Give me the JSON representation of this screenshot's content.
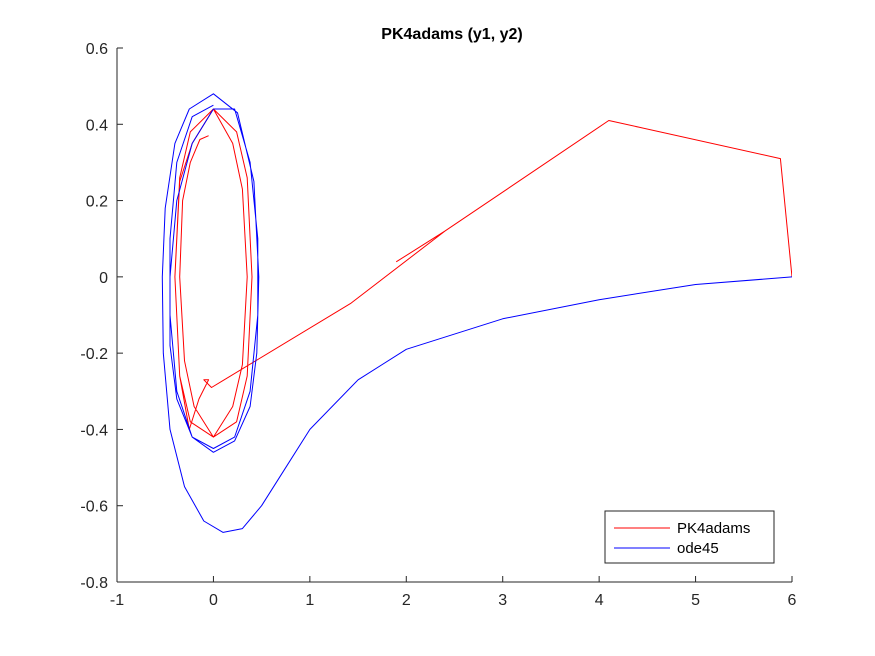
{
  "chart_data": {
    "type": "line",
    "title": "PK4adams (y1, y2)",
    "xlabel": "",
    "ylabel": "",
    "xlim": [
      -1,
      6
    ],
    "ylim": [
      -0.8,
      0.6
    ],
    "xticks": [
      -1,
      0,
      1,
      2,
      3,
      4,
      5,
      6
    ],
    "xtick_labels": [
      "-1",
      "0",
      "1",
      "2",
      "3",
      "4",
      "5",
      "6"
    ],
    "yticks": [
      -0.8,
      -0.6,
      -0.4,
      -0.2,
      0,
      0.2,
      0.4,
      0.6
    ],
    "ytick_labels": [
      "-0.8",
      "-0.6",
      "-0.4",
      "-0.2",
      "0",
      "0.2",
      "0.4",
      "0.6"
    ],
    "grid": false,
    "legend_position": "bottom-right",
    "series": [
      {
        "name": "PK4adams",
        "color": "#ff0000",
        "x": [
          6.0,
          5.88,
          4.1,
          2.4,
          1.9,
          2.4,
          1.42,
          -0.02,
          -0.1,
          -0.05,
          -0.15,
          -0.25,
          -0.35,
          -0.4,
          -0.35,
          -0.24,
          0.0,
          0.24,
          0.35,
          0.4,
          0.35,
          0.24,
          0.0,
          -0.24,
          -0.35,
          -0.4,
          -0.35,
          -0.22,
          0.0,
          0.2,
          0.3,
          0.35,
          0.3,
          0.2,
          0.0,
          -0.2,
          -0.3,
          -0.35,
          -0.32,
          -0.24,
          -0.14,
          -0.05
        ],
        "y": [
          0.0,
          0.31,
          0.41,
          0.12,
          0.04,
          0.12,
          -0.07,
          -0.29,
          -0.27,
          -0.27,
          -0.32,
          -0.4,
          -0.26,
          0.0,
          0.26,
          0.38,
          0.44,
          0.38,
          0.26,
          0.0,
          -0.26,
          -0.38,
          -0.42,
          -0.38,
          -0.26,
          0.0,
          0.25,
          0.35,
          0.44,
          0.35,
          0.23,
          0.0,
          -0.23,
          -0.34,
          -0.42,
          -0.34,
          -0.22,
          0.0,
          0.2,
          0.3,
          0.36,
          0.37
        ]
      },
      {
        "name": "ode45",
        "color": "#0000ff",
        "x": [
          6.0,
          5.0,
          4.0,
          3.0,
          2.0,
          1.5,
          1.0,
          0.7,
          0.5,
          0.3,
          0.1,
          -0.1,
          -0.3,
          -0.45,
          -0.52,
          -0.53,
          -0.5,
          -0.4,
          -0.25,
          0.0,
          0.25,
          0.42,
          0.47,
          0.45,
          0.38,
          0.22,
          0.0,
          -0.22,
          -0.38,
          -0.45,
          -0.45,
          -0.38,
          -0.22,
          0.0,
          0.22,
          0.38,
          0.46,
          0.46,
          0.38,
          0.22,
          0.0,
          -0.22,
          -0.38,
          -0.45,
          -0.45,
          -0.38,
          -0.22,
          0.0
        ],
        "y": [
          0.0,
          -0.02,
          -0.06,
          -0.11,
          -0.19,
          -0.27,
          -0.4,
          -0.52,
          -0.6,
          -0.66,
          -0.67,
          -0.64,
          -0.55,
          -0.4,
          -0.2,
          0.0,
          0.18,
          0.35,
          0.44,
          0.48,
          0.43,
          0.25,
          0.0,
          -0.2,
          -0.34,
          -0.43,
          -0.46,
          -0.42,
          -0.32,
          -0.18,
          0.0,
          0.2,
          0.35,
          0.44,
          0.44,
          0.3,
          0.1,
          -0.1,
          -0.3,
          -0.42,
          -0.45,
          -0.42,
          -0.3,
          -0.1,
          0.1,
          0.3,
          0.42,
          0.45
        ]
      }
    ]
  }
}
